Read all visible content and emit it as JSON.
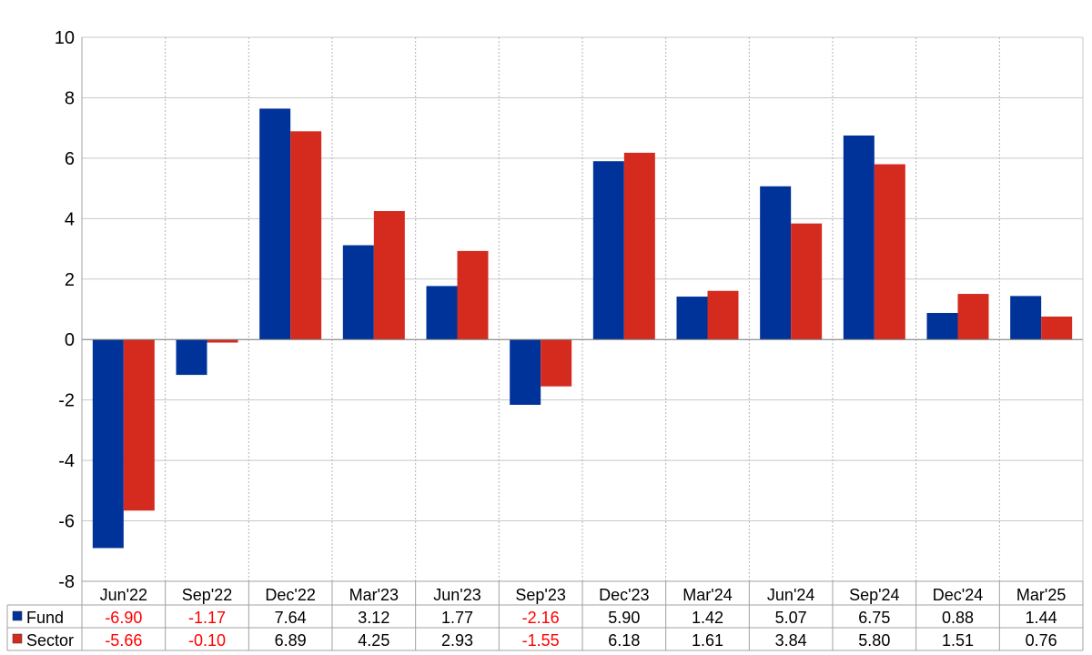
{
  "chart_data": {
    "type": "bar",
    "categories": [
      "Jun'22",
      "Sep'22",
      "Dec'22",
      "Mar'23",
      "Jun'23",
      "Sep'23",
      "Dec'23",
      "Mar'24",
      "Jun'24",
      "Sep'24",
      "Dec'24",
      "Mar'25"
    ],
    "series": [
      {
        "name": "Fund",
        "color": "#003399",
        "values": [
          -6.9,
          -1.17,
          7.64,
          3.12,
          1.77,
          -2.16,
          5.9,
          1.42,
          5.07,
          6.75,
          0.88,
          1.44
        ],
        "labels": [
          "-6.90",
          "-1.17",
          "7.64",
          "3.12",
          "1.77",
          "-2.16",
          "5.90",
          "1.42",
          "5.07",
          "6.75",
          "0.88",
          "1.44"
        ]
      },
      {
        "name": "Sector",
        "color": "#d42b1e",
        "values": [
          -5.66,
          -0.1,
          6.89,
          4.25,
          2.93,
          -1.55,
          6.18,
          1.61,
          3.84,
          5.8,
          1.51,
          0.76
        ],
        "labels": [
          "-5.66",
          "-0.10",
          "6.89",
          "4.25",
          "2.93",
          "-1.55",
          "6.18",
          "1.61",
          "3.84",
          "5.80",
          "1.51",
          "0.76"
        ]
      }
    ],
    "ylim": [
      -8,
      10
    ],
    "yticks": [
      "-8",
      "-6",
      "-4",
      "-2",
      "0",
      "2",
      "4",
      "6",
      "8",
      "10"
    ],
    "negative_color": "#ff0000",
    "grid": true,
    "legend": "table-below"
  }
}
